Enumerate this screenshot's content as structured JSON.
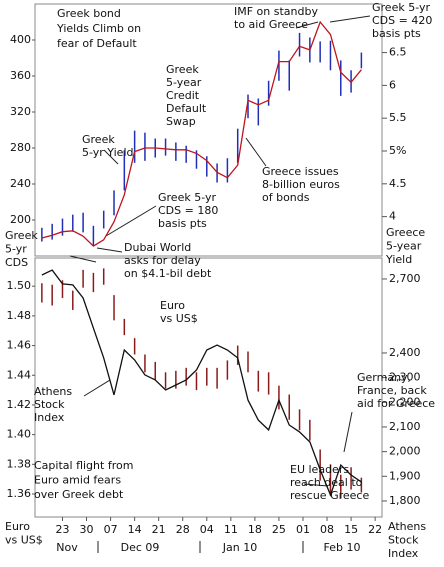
{
  "chart_data": [
    {
      "type": "range-line",
      "x": [
        -6,
        -3,
        0,
        3,
        6,
        9,
        12,
        15,
        18,
        21,
        24,
        27,
        30,
        33,
        36,
        39,
        42,
        45,
        48,
        51,
        54,
        57,
        60,
        63,
        66,
        69,
        72,
        75,
        78,
        81,
        84,
        87
      ],
      "xlim": [
        -8,
        93
      ],
      "ylim": [
        160,
        440
      ],
      "yticks": [
        200,
        240,
        280,
        320,
        360,
        400
      ],
      "y2lim": [
        3.4,
        7.24
      ],
      "y2ticks": [
        4,
        4.5,
        {
          "value": 5,
          "label": "5%"
        },
        5.5,
        6,
        6.5
      ],
      "series": [
        {
          "style": "range",
          "axis": "y2",
          "color": "#1f2fb8",
          "high": [
            3.83,
            3.89,
            3.97,
            4.03,
            4.06,
            3.86,
            4.09,
            4.4,
            5.01,
            5.31,
            5.28,
            5.19,
            5.19,
            5.13,
            5.08,
            5.01,
            4.92,
            4.81,
            4.89,
            5.34,
            5.86,
            5.8,
            6.07,
            6.53,
            6.38,
            6.8,
            6.73,
            6.67,
            6.68,
            6.38,
            6.23,
            6.5
          ],
          "low": [
            3.62,
            3.65,
            3.71,
            3.77,
            3.76,
            3.56,
            3.82,
            4.02,
            4.4,
            4.82,
            4.85,
            4.9,
            4.93,
            4.85,
            4.82,
            4.73,
            4.61,
            4.52,
            4.52,
            4.82,
            5.5,
            5.39,
            5.69,
            6.07,
            5.92,
            6.44,
            6.35,
            6.35,
            6.23,
            5.84,
            5.89,
            6.26
          ]
        },
        {
          "style": "line",
          "axis": "y",
          "color": "#c0141c",
          "values": [
            180,
            183,
            187,
            188,
            182,
            171,
            178,
            198,
            228,
            276,
            280,
            280,
            279,
            278,
            278,
            274,
            266,
            253,
            247,
            261,
            333,
            328,
            333,
            376,
            376,
            393,
            389,
            420,
            406,
            364,
            353,
            367
          ]
        }
      ],
      "axis_labels": {
        "left": [
          "Greek",
          "5-yr",
          "CDS"
        ],
        "right": [
          "Greece",
          "5-year",
          "Yield"
        ]
      },
      "annotations": [
        {
          "lines": [
            "Greek bond",
            "Yields Climb on",
            "fear of Default"
          ],
          "color": "#111"
        },
        {
          "lines": [
            "IMF on standby",
            "to aid Greece"
          ],
          "color": "#111"
        },
        {
          "lines": [
            "Greek 5-yr",
            "CDS = 420",
            "basis pts"
          ],
          "color": "#111"
        },
        {
          "lines": [
            "Greek",
            "5-year",
            "Credit",
            "Default",
            "Swap"
          ],
          "color": "#c0141c"
        },
        {
          "lines": [
            "Greek",
            "5-yr Yield"
          ],
          "color": "#1f2fb8"
        },
        {
          "lines": [
            "Greece issues",
            "8-billion euros",
            "of bonds"
          ],
          "color": "#111"
        },
        {
          "lines": [
            "Greek 5-yr",
            "CDS = 180",
            "basis pts"
          ],
          "color": "#111"
        },
        {
          "lines": [
            "Dubai World",
            "asks for delay",
            "on $4.1-bil debt"
          ],
          "color": "#111"
        }
      ]
    },
    {
      "type": "range-line",
      "x": [
        -6,
        -3,
        0,
        3,
        6,
        9,
        12,
        15,
        18,
        21,
        24,
        27,
        30,
        33,
        36,
        39,
        42,
        45,
        48,
        51,
        54,
        57,
        60,
        63,
        66,
        69,
        72,
        75,
        78,
        81,
        84,
        87
      ],
      "xlim": [
        -8,
        93
      ],
      "xticks": [
        {
          "value": 0,
          "label": "23"
        },
        {
          "value": 7,
          "label": "30"
        },
        {
          "value": 14,
          "label": "07"
        },
        {
          "value": 21,
          "label": "14"
        },
        {
          "value": 28,
          "label": "21"
        },
        {
          "value": 35,
          "label": "28"
        },
        {
          "value": 42,
          "label": "04"
        },
        {
          "value": 49,
          "label": "11"
        },
        {
          "value": 56,
          "label": "18"
        },
        {
          "value": 63,
          "label": "25"
        },
        {
          "value": 70,
          "label": "01"
        },
        {
          "value": 77,
          "label": "08"
        },
        {
          "value": 84,
          "label": "15"
        },
        {
          "value": 91,
          "label": "22"
        }
      ],
      "months": [
        "Nov",
        "Dec 09",
        "Jan 10",
        "Feb 10"
      ],
      "ylim": [
        1.3445,
        1.519
      ],
      "yticks": [
        1.36,
        1.38,
        {
          "value": 1.4,
          "label": "1.40"
        },
        1.42,
        1.44,
        1.46,
        1.48,
        {
          "value": 1.5,
          "label": "1.50"
        }
      ],
      "y2lim": [
        1735,
        2785
      ],
      "y2ticks": [
        {
          "value": 1800,
          "label": "1,800"
        },
        {
          "value": 1900,
          "label": "1,900"
        },
        {
          "value": 2000,
          "label": "2,000"
        },
        {
          "value": 2100,
          "label": "2,100"
        },
        {
          "value": 2200,
          "label": "2,200"
        },
        {
          "value": 2300,
          "label": "2,300"
        },
        {
          "value": 2400,
          "label": "2,400"
        },
        {
          "value": 2700,
          "label": "2,700"
        }
      ],
      "series": [
        {
          "style": "range",
          "axis": "y",
          "color": "#8b1a1a",
          "high": [
            1.502,
            1.501,
            1.504,
            1.497,
            1.511,
            1.509,
            1.512,
            1.494,
            1.478,
            1.465,
            1.454,
            1.449,
            1.442,
            1.443,
            1.445,
            1.442,
            1.445,
            1.445,
            1.45,
            1.46,
            1.456,
            1.443,
            1.442,
            1.433,
            1.427,
            1.417,
            1.41,
            1.39,
            1.38,
            1.373,
            1.378,
            1.371
          ],
          "low": [
            1.489,
            1.487,
            1.492,
            1.484,
            1.499,
            1.496,
            1.501,
            1.477,
            1.467,
            1.454,
            1.442,
            1.437,
            1.431,
            1.431,
            1.433,
            1.43,
            1.433,
            1.431,
            1.437,
            1.447,
            1.442,
            1.429,
            1.427,
            1.417,
            1.41,
            1.403,
            1.396,
            1.369,
            1.359,
            1.357,
            1.363,
            1.361
          ]
        },
        {
          "style": "line",
          "axis": "y2",
          "color": "#111",
          "values": [
            2716,
            2736,
            2680,
            2676,
            2623,
            2501,
            2380,
            2230,
            2412,
            2372,
            2311,
            2291,
            2250,
            2270,
            2291,
            2331,
            2412,
            2432,
            2412,
            2380,
            2209,
            2128,
            2088,
            2209,
            2108,
            2080,
            2039,
            1926,
            1824,
            1946,
            1905,
            1877
          ]
        }
      ],
      "axis_labels": {
        "left": [
          "Euro",
          "vs US$"
        ],
        "right": [
          "Athens",
          "Stock",
          "Index"
        ]
      },
      "annotations": [
        {
          "lines": [
            "Euro",
            "vs US$"
          ],
          "color": "#c0141c"
        },
        {
          "lines": [
            "Athens",
            "Stock",
            "Index"
          ],
          "color": "#111"
        },
        {
          "lines": [
            "Germany,",
            "France, back",
            "aid for Greece"
          ],
          "color": "#111"
        },
        {
          "lines": [
            "Capital flight from",
            "Euro amid fears",
            "over Greek debt"
          ],
          "color": "#111"
        },
        {
          "lines": [
            "EU leaders",
            "reach deal to",
            "rescue Greece"
          ],
          "color": "#111"
        }
      ]
    }
  ]
}
